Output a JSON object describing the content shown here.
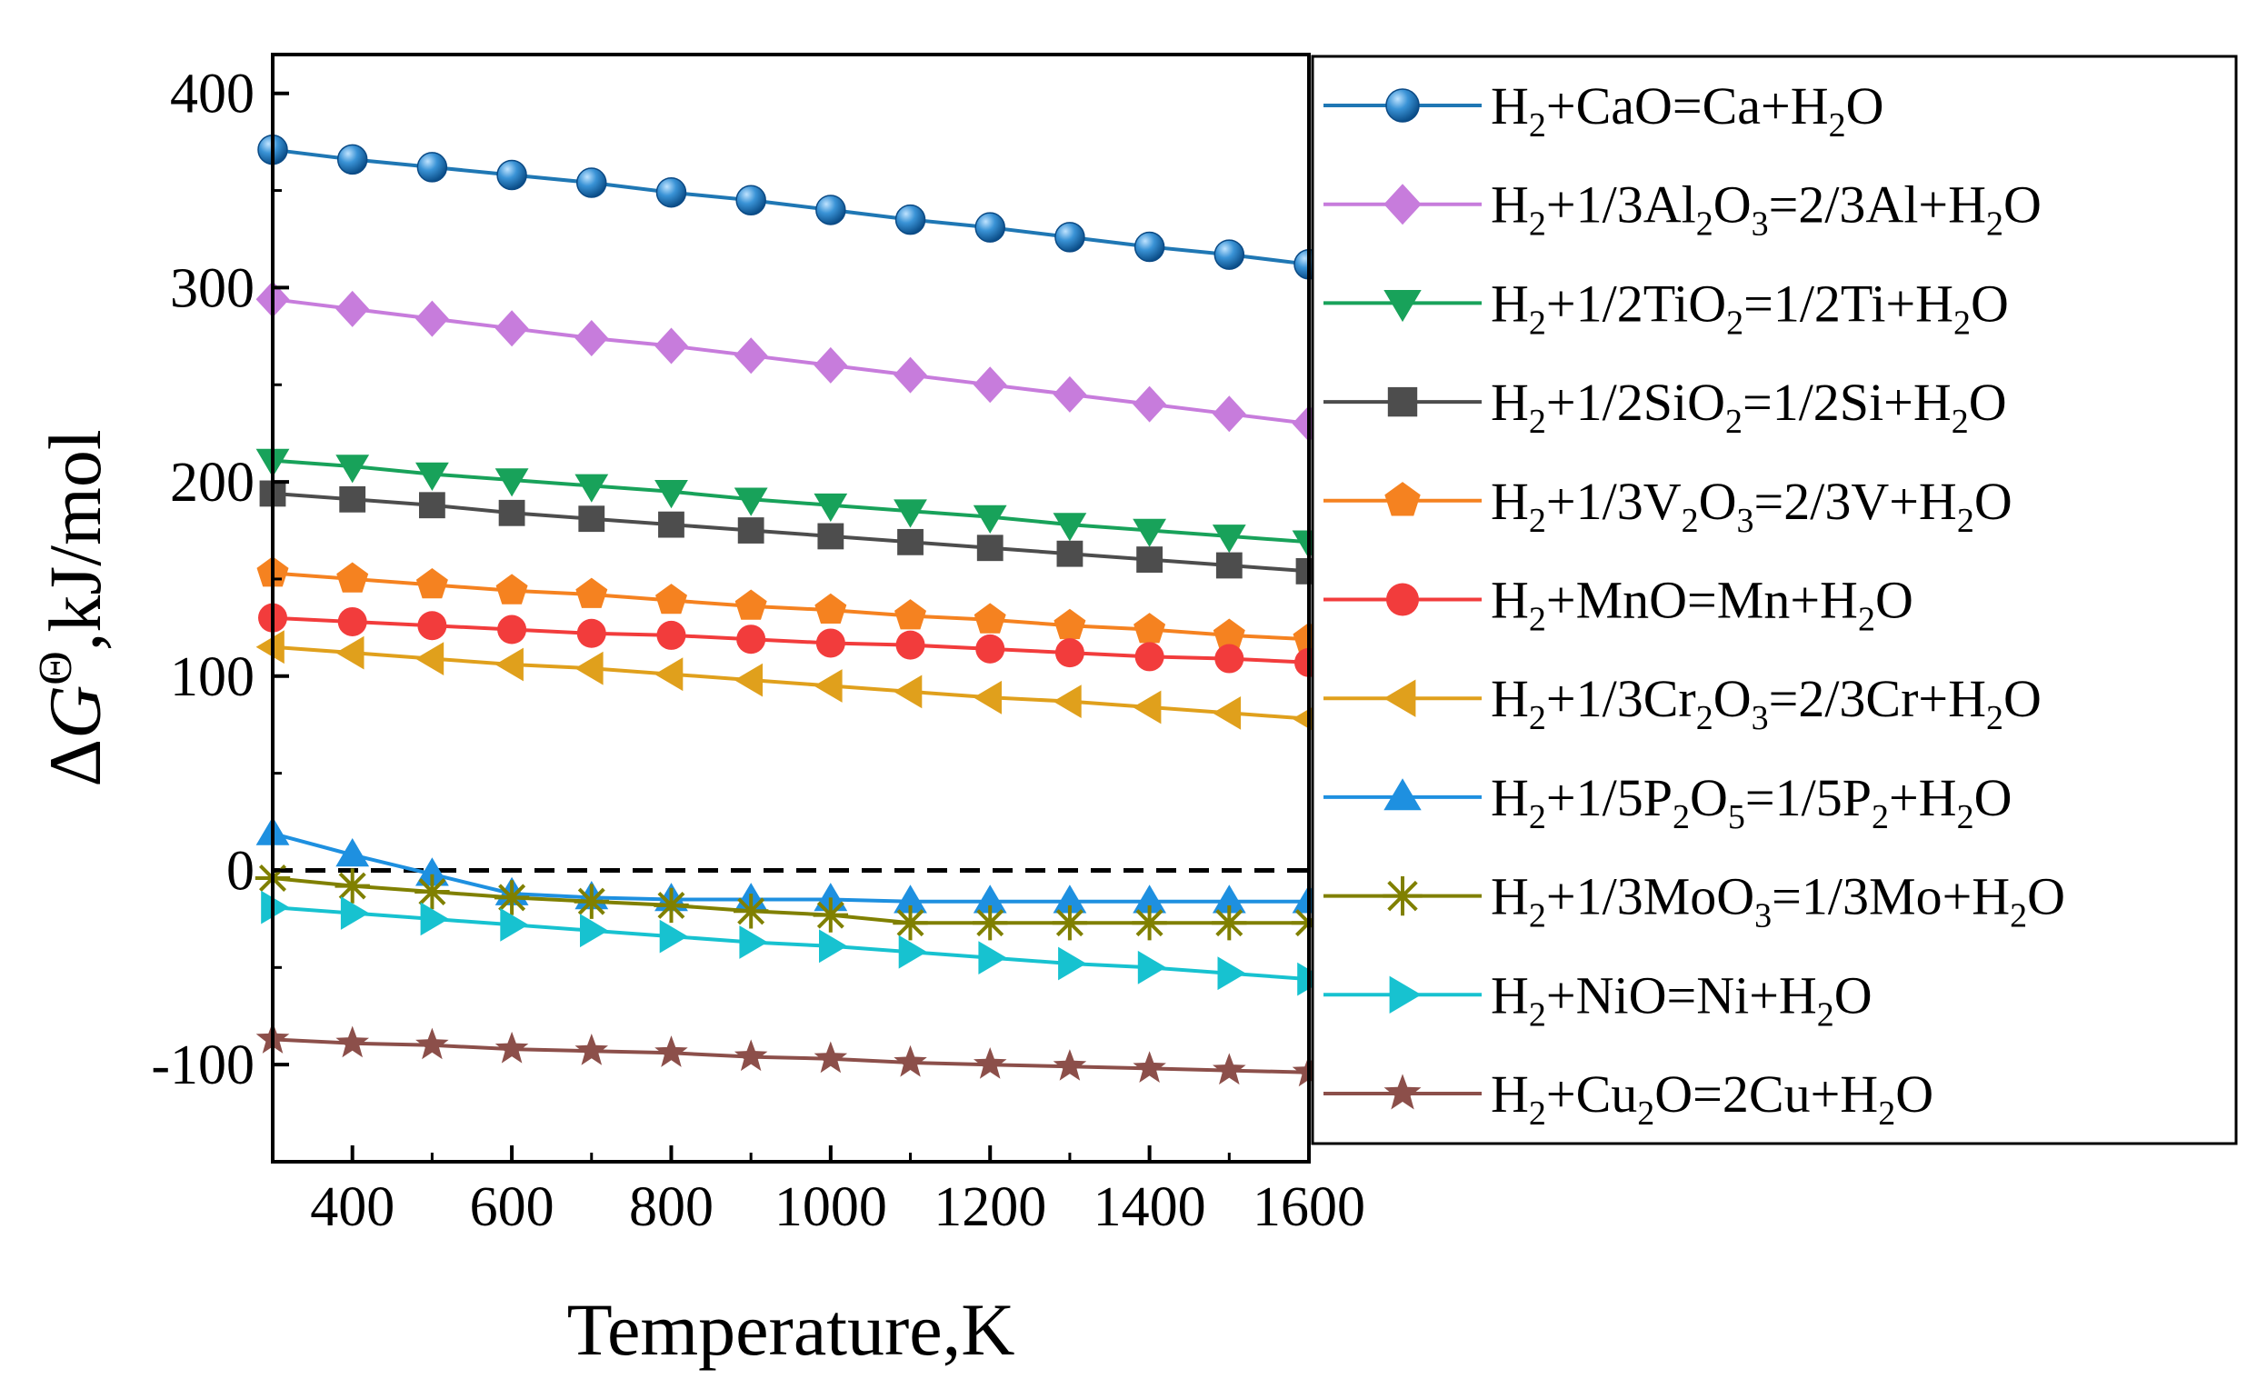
{
  "chart_data": {
    "type": "line",
    "title": "",
    "xlabel": "Temperature,K",
    "ylabel": "ΔG",
    "ylabel_sup": "Θ",
    "ylabel_suffix": ",kJ/mol",
    "xlim": [
      300,
      1600
    ],
    "ylim": [
      -150,
      420
    ],
    "xticks": [
      400,
      600,
      800,
      1000,
      1200,
      1400,
      1600
    ],
    "xtick_labels": [
      "400",
      "600",
      "800",
      "1000",
      "1200",
      "1400",
      "1600"
    ],
    "yticks": [
      -100,
      0,
      100,
      200,
      300,
      400
    ],
    "ytick_labels": [
      "-100",
      "0",
      "100",
      "200",
      "300",
      "400"
    ],
    "zero_line": {
      "y": 0,
      "style": "dashed"
    },
    "x": [
      300,
      400,
      500,
      600,
      700,
      800,
      900,
      1000,
      1100,
      1200,
      1300,
      1400,
      1500,
      1600
    ],
    "legend_position": "right",
    "series": [
      {
        "name": "H2+CaO=Ca+H2O",
        "label_parts": [
          [
            "H",
            "n"
          ],
          [
            "2",
            "sub"
          ],
          [
            "+CaO=Ca+H",
            "n"
          ],
          [
            "2",
            "sub"
          ],
          [
            "O",
            "n"
          ]
        ],
        "color": "#1f77b4",
        "marker": "sphere",
        "values": [
          371,
          366,
          362,
          358,
          354,
          349,
          345,
          340,
          335,
          331,
          326,
          321,
          317,
          312
        ]
      },
      {
        "name": "H2+1/3Al2O3=2/3Al+H2O",
        "label_parts": [
          [
            "H",
            "n"
          ],
          [
            "2",
            "sub"
          ],
          [
            "+1/3Al",
            "n"
          ],
          [
            "2",
            "sub"
          ],
          [
            "O",
            "n"
          ],
          [
            "3",
            "sub"
          ],
          [
            "=2/3Al+H",
            "n"
          ],
          [
            "2",
            "sub"
          ],
          [
            "O",
            "n"
          ]
        ],
        "color": "#c77cdc",
        "marker": "diamond",
        "values": [
          294,
          289,
          284,
          279,
          274,
          270,
          265,
          260,
          255,
          250,
          245,
          240,
          235,
          230
        ]
      },
      {
        "name": "H2+1/2TiO2=1/2Ti+H2O",
        "label_parts": [
          [
            "H",
            "n"
          ],
          [
            "2",
            "sub"
          ],
          [
            "+1/2TiO",
            "n"
          ],
          [
            "2",
            "sub"
          ],
          [
            "=1/2Ti+H",
            "n"
          ],
          [
            "2",
            "sub"
          ],
          [
            "O",
            "n"
          ]
        ],
        "color": "#18a25a",
        "marker": "triangle-down",
        "values": [
          211,
          208,
          204,
          201,
          198,
          195,
          191,
          188,
          185,
          182,
          178,
          175,
          172,
          169
        ]
      },
      {
        "name": "H2+1/2SiO2=1/2Si+H2O",
        "label_parts": [
          [
            "H",
            "n"
          ],
          [
            "2",
            "sub"
          ],
          [
            "+1/2SiO",
            "n"
          ],
          [
            "2",
            "sub"
          ],
          [
            "=1/2Si+H",
            "n"
          ],
          [
            "2",
            "sub"
          ],
          [
            "O",
            "n"
          ]
        ],
        "color": "#4d4d4d",
        "marker": "square",
        "values": [
          194,
          191,
          188,
          184,
          181,
          178,
          175,
          172,
          169,
          166,
          163,
          160,
          157,
          154
        ]
      },
      {
        "name": "H2+1/3V2O3=2/3V+H2O",
        "label_parts": [
          [
            "H",
            "n"
          ],
          [
            "2",
            "sub"
          ],
          [
            "+1/3V",
            "n"
          ],
          [
            "2",
            "sub"
          ],
          [
            "O",
            "n"
          ],
          [
            "3",
            "sub"
          ],
          [
            "=2/3V+H",
            "n"
          ],
          [
            "2",
            "sub"
          ],
          [
            "O",
            "n"
          ]
        ],
        "color": "#f58220",
        "marker": "pentagon",
        "values": [
          153,
          150,
          147,
          144,
          142,
          139,
          136,
          134,
          131,
          129,
          126,
          124,
          121,
          119
        ]
      },
      {
        "name": "H2+MnO=Mn+H2O",
        "label_parts": [
          [
            "H",
            "n"
          ],
          [
            "2",
            "sub"
          ],
          [
            "+MnO=Mn+H",
            "n"
          ],
          [
            "2",
            "sub"
          ],
          [
            "O",
            "n"
          ]
        ],
        "color": "#f23c3c",
        "marker": "circle",
        "values": [
          130,
          128,
          126,
          124,
          122,
          121,
          119,
          117,
          116,
          114,
          112,
          110,
          109,
          107
        ]
      },
      {
        "name": "H2+1/3Cr2O3=2/3Cr+H2O",
        "label_parts": [
          [
            "H",
            "n"
          ],
          [
            "2",
            "sub"
          ],
          [
            "+1/3Cr",
            "n"
          ],
          [
            "2",
            "sub"
          ],
          [
            "O",
            "n"
          ],
          [
            "3",
            "sub"
          ],
          [
            "=2/3Cr+H",
            "n"
          ],
          [
            "2",
            "sub"
          ],
          [
            "O",
            "n"
          ]
        ],
        "color": "#e0a01c",
        "marker": "triangle-left",
        "values": [
          115,
          112,
          109,
          106,
          104,
          101,
          98,
          95,
          92,
          89,
          87,
          84,
          81,
          78
        ]
      },
      {
        "name": "H2+1/5P2O5=1/5P2+H2O",
        "label_parts": [
          [
            "H",
            "n"
          ],
          [
            "2",
            "sub"
          ],
          [
            "+1/5P",
            "n"
          ],
          [
            "2",
            "sub"
          ],
          [
            "O",
            "n"
          ],
          [
            "5",
            "sub"
          ],
          [
            "=1/5P",
            "n"
          ],
          [
            "2",
            "sub"
          ],
          [
            "+H",
            "n"
          ],
          [
            "2",
            "sub"
          ],
          [
            "O",
            "n"
          ]
        ],
        "color": "#1e90e0",
        "marker": "triangle-up",
        "values": [
          19,
          8,
          -2,
          -12,
          -14,
          -15,
          -15,
          -15,
          -16,
          -16,
          -16,
          -16,
          -16,
          -16
        ]
      },
      {
        "name": "H2+1/3MoO3=1/3Mo+H2O",
        "label_parts": [
          [
            "H",
            "n"
          ],
          [
            "2",
            "sub"
          ],
          [
            "+1/3MoO",
            "n"
          ],
          [
            "3",
            "sub"
          ],
          [
            "=1/3Mo+H",
            "n"
          ],
          [
            "2",
            "sub"
          ],
          [
            "O",
            "n"
          ]
        ],
        "color": "#808000",
        "marker": "asterisk",
        "values": [
          -4,
          -8,
          -11,
          -14,
          -16,
          -18,
          -21,
          -23,
          -27,
          -27,
          -27,
          -27,
          -27,
          -27
        ]
      },
      {
        "name": "H2+NiO=Ni+H2O",
        "label_parts": [
          [
            "H",
            "n"
          ],
          [
            "2",
            "sub"
          ],
          [
            "+NiO=Ni+H",
            "n"
          ],
          [
            "2",
            "sub"
          ],
          [
            "O",
            "n"
          ]
        ],
        "color": "#17c2d0",
        "marker": "triangle-right",
        "values": [
          -19,
          -22,
          -25,
          -28,
          -31,
          -34,
          -37,
          -39,
          -42,
          -45,
          -48,
          -50,
          -53,
          -56
        ]
      },
      {
        "name": "H2+Cu2O=2Cu+H2O",
        "label_parts": [
          [
            "H",
            "n"
          ],
          [
            "2",
            "sub"
          ],
          [
            "+Cu",
            "n"
          ],
          [
            "2",
            "sub"
          ],
          [
            "O=2Cu+H",
            "n"
          ],
          [
            "2",
            "sub"
          ],
          [
            "O",
            "n"
          ]
        ],
        "color": "#8c4f4a",
        "marker": "star",
        "values": [
          -87,
          -89,
          -90,
          -92,
          -93,
          -94,
          -96,
          -97,
          -99,
          -100,
          -101,
          -102,
          -103,
          -104
        ]
      }
    ]
  }
}
